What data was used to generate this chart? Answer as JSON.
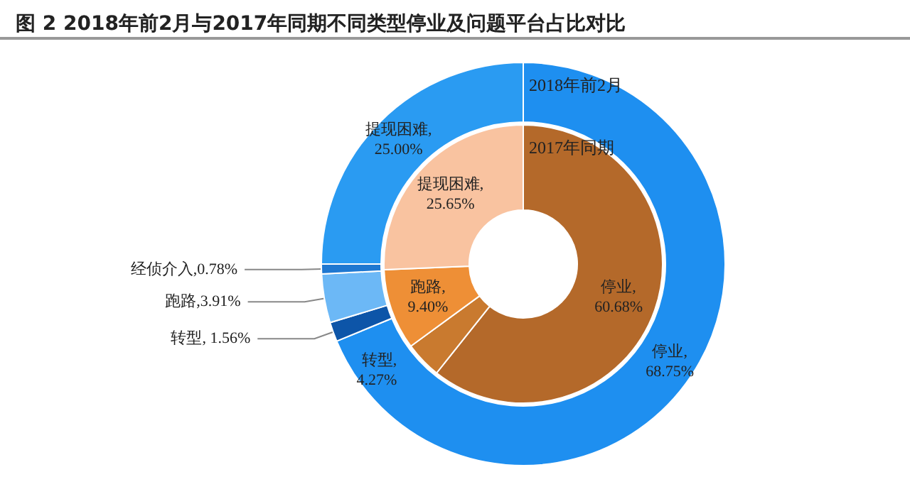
{
  "chart_data": {
    "type": "donut",
    "title": "图 2 2018年前2月与2017年同期不同类型停业及问题平台占比对比",
    "categories": [
      "停业",
      "转型",
      "跑路",
      "经侦介入",
      "提现困难"
    ],
    "series": [
      {
        "name": "2018年前2月",
        "values": [
          68.75,
          1.56,
          3.91,
          0.78,
          25.0
        ],
        "value_labels": [
          ",68.75%",
          ", 1.56%",
          ",3.91%",
          ",0.78%",
          ",25.00%"
        ],
        "colors": [
          "#1e8ff0",
          "#0d55a8",
          "#6cb8f6",
          "#1f78d1",
          "#2a9bf2"
        ]
      },
      {
        "name": "2017年同期",
        "values": [
          60.68,
          4.27,
          9.4,
          null,
          25.65
        ],
        "value_labels": [
          ",60.68%",
          ",4.27%",
          ",9.40%",
          null,
          ",25.65%"
        ],
        "colors": [
          "#b4692a",
          "#c97a2f",
          "#ee8f36",
          null,
          "#f9c3a0"
        ]
      }
    ],
    "legend": false
  }
}
